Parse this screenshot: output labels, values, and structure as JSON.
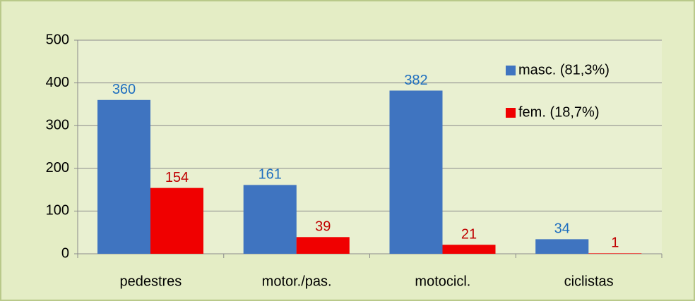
{
  "chart_data": {
    "type": "bar",
    "categories": [
      "pedestres",
      "motor./pas.",
      "motocicl.",
      "ciclistas"
    ],
    "series": [
      {
        "name": "masc. (81,3%)",
        "color": "#3f74c0",
        "label_color": "#1f6fbf",
        "values": [
          360,
          161,
          382,
          34
        ]
      },
      {
        "name": "fem. (18,7%)",
        "color": "#f00000",
        "label_color": "#c00000",
        "values": [
          154,
          39,
          21,
          1
        ]
      }
    ],
    "ylim": [
      0,
      500
    ],
    "yticks": [
      0,
      100,
      200,
      300,
      400,
      500
    ],
    "grid": true,
    "legend": "top-right"
  }
}
